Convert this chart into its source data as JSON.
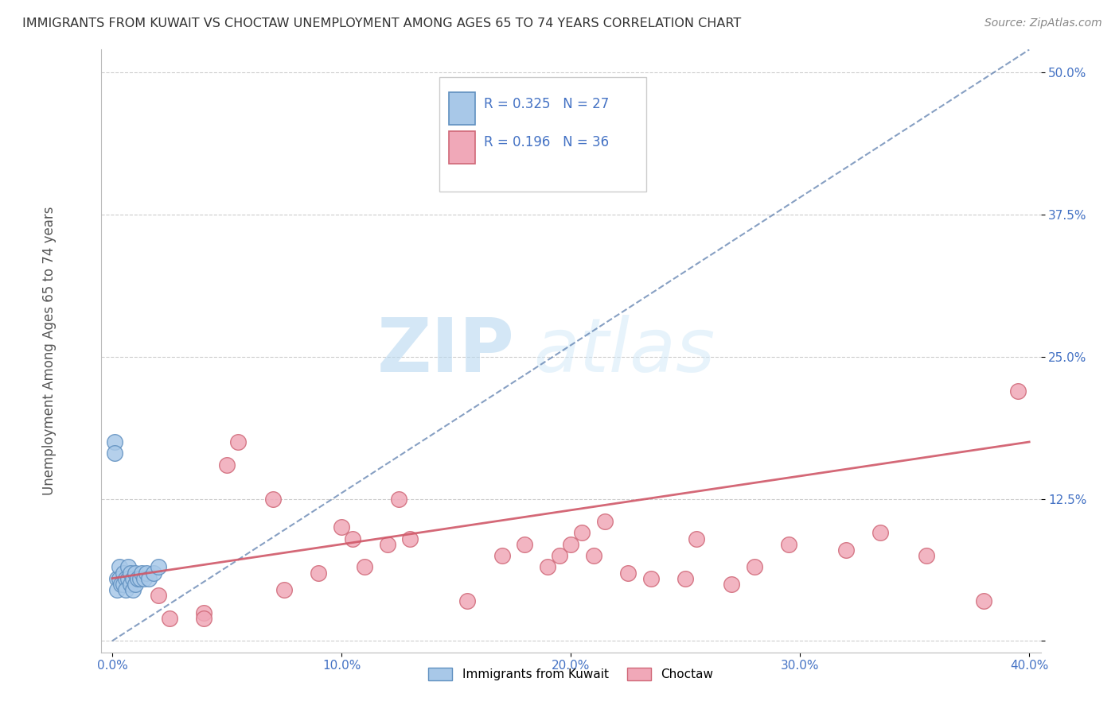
{
  "title": "IMMIGRANTS FROM KUWAIT VS CHOCTAW UNEMPLOYMENT AMONG AGES 65 TO 74 YEARS CORRELATION CHART",
  "source": "Source: ZipAtlas.com",
  "ylabel": "Unemployment Among Ages 65 to 74 years",
  "xlabel": "",
  "xlim": [
    -0.005,
    0.405
  ],
  "ylim": [
    -0.01,
    0.52
  ],
  "xticks": [
    0.0,
    0.1,
    0.2,
    0.3,
    0.4
  ],
  "yticks": [
    0.0,
    0.125,
    0.25,
    0.375,
    0.5
  ],
  "xticklabels": [
    "0.0%",
    "10.0%",
    "20.0%",
    "30.0%",
    "40.0%"
  ],
  "yticklabels": [
    "",
    "12.5%",
    "25.0%",
    "37.5%",
    "50.0%"
  ],
  "legend_labels": [
    "Immigrants from Kuwait",
    "Choctaw"
  ],
  "R_blue": 0.325,
  "N_blue": 27,
  "R_pink": 0.196,
  "N_pink": 36,
  "blue_color": "#a8c8e8",
  "blue_edge_color": "#6090c0",
  "blue_line_color": "#5578aa",
  "pink_color": "#f0a8b8",
  "pink_edge_color": "#d06878",
  "pink_line_color": "#d05868",
  "watermark_zip": "ZIP",
  "watermark_atlas": "atlas",
  "background_color": "#ffffff",
  "grid_color": "#cccccc",
  "blue_scatter_x": [
    0.001,
    0.001,
    0.002,
    0.002,
    0.003,
    0.003,
    0.004,
    0.005,
    0.005,
    0.006,
    0.006,
    0.007,
    0.007,
    0.008,
    0.008,
    0.009,
    0.009,
    0.01,
    0.01,
    0.011,
    0.012,
    0.013,
    0.014,
    0.015,
    0.016,
    0.018,
    0.02
  ],
  "blue_scatter_y": [
    0.175,
    0.165,
    0.055,
    0.045,
    0.065,
    0.055,
    0.05,
    0.06,
    0.05,
    0.055,
    0.045,
    0.065,
    0.055,
    0.06,
    0.05,
    0.055,
    0.045,
    0.06,
    0.05,
    0.055,
    0.055,
    0.06,
    0.055,
    0.06,
    0.055,
    0.06,
    0.065
  ],
  "pink_scatter_x": [
    0.02,
    0.025,
    0.04,
    0.04,
    0.05,
    0.055,
    0.07,
    0.075,
    0.09,
    0.1,
    0.105,
    0.11,
    0.12,
    0.125,
    0.13,
    0.155,
    0.17,
    0.18,
    0.19,
    0.195,
    0.2,
    0.205,
    0.21,
    0.215,
    0.225,
    0.235,
    0.25,
    0.255,
    0.27,
    0.28,
    0.295,
    0.32,
    0.335,
    0.355,
    0.38,
    0.395
  ],
  "pink_scatter_y": [
    0.04,
    0.02,
    0.025,
    0.02,
    0.155,
    0.175,
    0.125,
    0.045,
    0.06,
    0.1,
    0.09,
    0.065,
    0.085,
    0.125,
    0.09,
    0.035,
    0.075,
    0.085,
    0.065,
    0.075,
    0.085,
    0.095,
    0.075,
    0.105,
    0.06,
    0.055,
    0.055,
    0.09,
    0.05,
    0.065,
    0.085,
    0.08,
    0.095,
    0.075,
    0.035,
    0.22
  ],
  "blue_trend_x": [
    0.0,
    0.4
  ],
  "blue_trend_y": [
    0.0,
    0.52
  ],
  "pink_trend_x": [
    0.0,
    0.4
  ],
  "pink_trend_y": [
    0.055,
    0.175
  ]
}
